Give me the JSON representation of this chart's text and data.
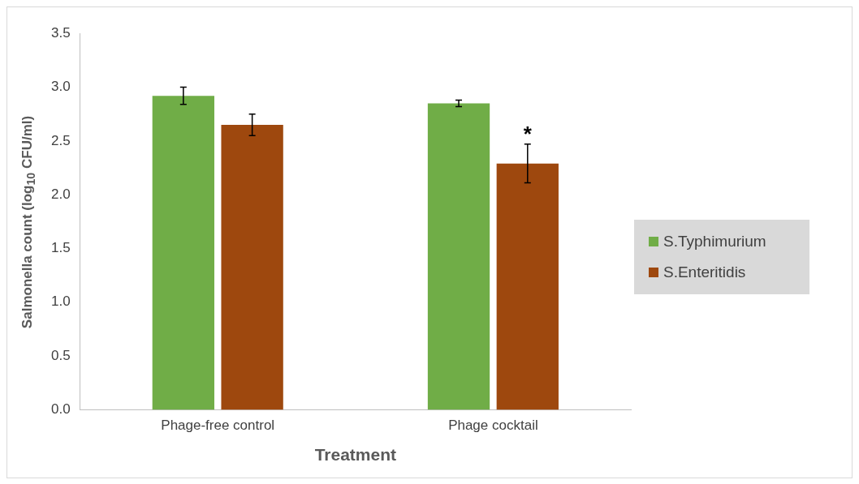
{
  "chart_data": {
    "type": "bar",
    "xlabel": "Treatment",
    "ylabel": "Salmonella count (log$_{10}$ CFU/ml)",
    "categories": [
      "Phage-free control",
      "Phage cocktail"
    ],
    "series": [
      {
        "name": "S.Typhimurium",
        "color": "#70ad47",
        "values": [
          2.92,
          2.85
        ],
        "errors": [
          0.08,
          0.03
        ]
      },
      {
        "name": "S.Enteritidis",
        "color": "#9e480e",
        "values": [
          2.65,
          2.29
        ],
        "errors": [
          0.1,
          0.18
        ]
      }
    ],
    "ylim": [
      0,
      3.5
    ],
    "yticks": [
      {
        "value": 0,
        "label": "0.0"
      },
      {
        "value": 0.5,
        "label": "0.5"
      },
      {
        "value": 1,
        "label": "1.0"
      },
      {
        "value": 1.5,
        "label": "1.5"
      },
      {
        "value": 2,
        "label": "2.0"
      },
      {
        "value": 2.5,
        "label": "2.5"
      },
      {
        "value": 3,
        "label": "3.0"
      },
      {
        "value": 3.5,
        "label": "3.5"
      }
    ],
    "grid": false,
    "legend": "right",
    "annotations": [
      {
        "text": "*",
        "x": "Phage cocktail",
        "y": 2.6
      }
    ]
  }
}
